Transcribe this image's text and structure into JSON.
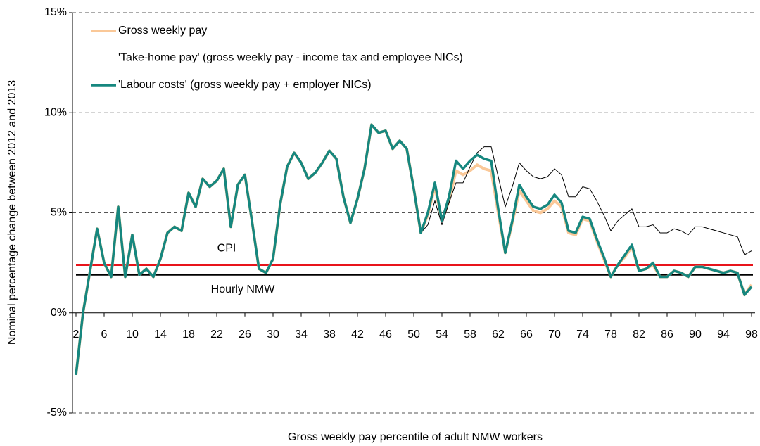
{
  "chart_data": {
    "type": "line",
    "x_label": "Gross weekly pay percentile of adult NMW workers",
    "y_label": "Nominal percentage change between 2012 and 2013",
    "x": [
      2,
      3,
      4,
      5,
      6,
      7,
      8,
      9,
      10,
      11,
      12,
      13,
      14,
      15,
      16,
      17,
      18,
      19,
      20,
      21,
      22,
      23,
      24,
      25,
      26,
      27,
      28,
      29,
      30,
      31,
      32,
      33,
      34,
      35,
      36,
      37,
      38,
      39,
      40,
      41,
      42,
      43,
      44,
      45,
      46,
      47,
      48,
      49,
      50,
      51,
      52,
      53,
      54,
      55,
      56,
      57,
      58,
      59,
      60,
      61,
      62,
      63,
      64,
      65,
      66,
      67,
      68,
      69,
      70,
      71,
      72,
      73,
      74,
      75,
      76,
      77,
      78,
      79,
      80,
      81,
      82,
      83,
      84,
      85,
      86,
      87,
      88,
      89,
      90,
      91,
      92,
      93,
      94,
      95,
      96,
      97,
      98
    ],
    "series": [
      {
        "name": "Gross weekly pay",
        "color": "#fac898",
        "width": 4,
        "values": [
          -3.1,
          0.0,
          2.1,
          4.2,
          2.5,
          1.8,
          5.3,
          1.8,
          3.9,
          1.9,
          2.2,
          1.8,
          2.7,
          4.0,
          4.3,
          4.1,
          6.0,
          5.3,
          6.7,
          6.3,
          6.6,
          7.2,
          4.3,
          6.4,
          6.9,
          4.6,
          2.2,
          2.0,
          2.7,
          5.4,
          7.3,
          8.0,
          7.5,
          6.7,
          7.0,
          7.5,
          8.1,
          7.7,
          5.8,
          4.5,
          5.7,
          7.2,
          9.4,
          9.0,
          9.1,
          8.2,
          8.6,
          8.2,
          6.2,
          4.0,
          4.9,
          6.3,
          4.6,
          5.6,
          7.1,
          6.9,
          7.1,
          7.4,
          7.2,
          7.1,
          5.0,
          3.0,
          4.5,
          6.1,
          5.6,
          5.1,
          5.0,
          5.2,
          5.6,
          5.3,
          4.0,
          3.9,
          4.7,
          4.6,
          3.6,
          2.7,
          1.8,
          2.4,
          2.8,
          3.3,
          2.1,
          2.2,
          2.4,
          1.8,
          1.8,
          2.1,
          2.0,
          1.8,
          2.3,
          2.3,
          2.2,
          2.1,
          2.0,
          2.1,
          2.0,
          0.9,
          1.4
        ]
      },
      {
        "name": "'Take-home pay' (gross weekly pay - income tax and employee NICs)",
        "color": "#000000",
        "width": 1,
        "values": [
          null,
          null,
          null,
          null,
          null,
          null,
          null,
          null,
          null,
          null,
          null,
          null,
          null,
          null,
          null,
          null,
          null,
          null,
          null,
          null,
          null,
          null,
          null,
          null,
          null,
          null,
          null,
          null,
          null,
          null,
          null,
          null,
          null,
          null,
          null,
          null,
          null,
          null,
          null,
          null,
          null,
          null,
          null,
          null,
          null,
          null,
          null,
          null,
          null,
          4.0,
          4.4,
          5.6,
          4.4,
          5.5,
          6.5,
          6.5,
          7.3,
          8.0,
          8.3,
          8.3,
          6.8,
          5.3,
          6.3,
          7.5,
          7.1,
          6.8,
          6.7,
          6.8,
          7.2,
          6.9,
          5.8,
          5.8,
          6.3,
          6.2,
          5.6,
          4.9,
          4.1,
          4.6,
          4.9,
          5.2,
          4.3,
          4.3,
          4.4,
          4.0,
          4.0,
          4.2,
          4.1,
          3.9,
          4.3,
          4.3,
          4.2,
          4.1,
          4.0,
          3.9,
          3.8,
          2.9,
          3.1
        ]
      },
      {
        "name": "'Labour costs' (gross weekly pay + employer NICs)",
        "color": "#16877f",
        "width": 3.5,
        "values": [
          -3.1,
          0.0,
          2.1,
          4.2,
          2.5,
          1.8,
          5.3,
          1.8,
          3.9,
          1.9,
          2.2,
          1.8,
          2.7,
          4.0,
          4.3,
          4.1,
          6.0,
          5.3,
          6.7,
          6.3,
          6.6,
          7.2,
          4.3,
          6.4,
          6.9,
          4.6,
          2.2,
          2.0,
          2.7,
          5.4,
          7.3,
          8.0,
          7.5,
          6.7,
          7.0,
          7.5,
          8.1,
          7.7,
          5.8,
          4.5,
          5.7,
          7.2,
          9.4,
          9.0,
          9.1,
          8.2,
          8.6,
          8.2,
          6.2,
          4.0,
          5.0,
          6.5,
          4.6,
          5.8,
          7.6,
          7.2,
          7.6,
          7.9,
          7.7,
          7.6,
          5.2,
          3.0,
          4.6,
          6.4,
          5.8,
          5.3,
          5.2,
          5.4,
          5.9,
          5.5,
          4.1,
          4.0,
          4.8,
          4.7,
          3.7,
          2.8,
          1.8,
          2.4,
          2.9,
          3.4,
          2.1,
          2.2,
          2.5,
          1.8,
          1.8,
          2.1,
          2.0,
          1.8,
          2.3,
          2.3,
          2.2,
          2.1,
          2.0,
          2.1,
          2.0,
          0.9,
          1.3
        ]
      }
    ],
    "reference_lines": [
      {
        "label": "CPI",
        "value": 2.4,
        "color": "#e8141b"
      },
      {
        "label": "Hourly NMW",
        "value": 1.9,
        "color": "#000000"
      }
    ],
    "xlim": [
      1.5,
      98.5
    ],
    "xticks": [
      2,
      6,
      10,
      14,
      18,
      22,
      26,
      30,
      34,
      38,
      42,
      46,
      50,
      54,
      58,
      62,
      66,
      70,
      74,
      78,
      82,
      86,
      90,
      94,
      98
    ],
    "ylim": [
      -5,
      15
    ],
    "yticks": [
      {
        "value": -5,
        "label": "-5%"
      },
      {
        "value": 0,
        "label": "0%"
      },
      {
        "value": 5,
        "label": "5%"
      },
      {
        "value": 10,
        "label": "10%"
      },
      {
        "value": 15,
        "label": "15%"
      }
    ],
    "grid": true,
    "legend": "top-left"
  }
}
